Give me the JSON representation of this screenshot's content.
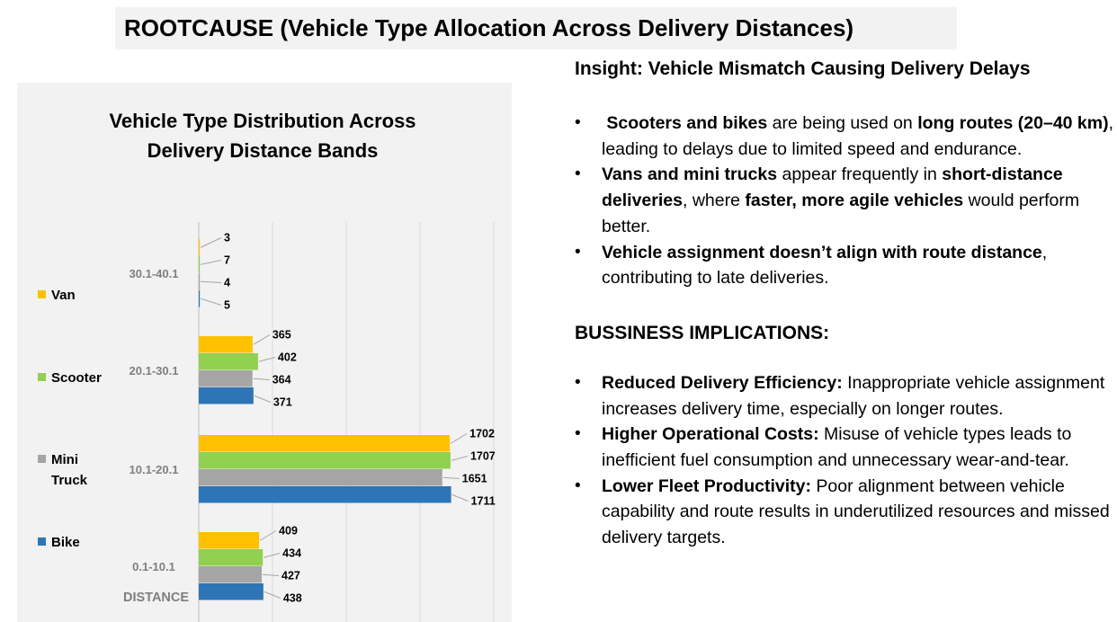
{
  "page_title": "ROOTCAUSE  (Vehicle Type Allocation Across Delivery Distances)",
  "insight": {
    "heading": "Insight: Vehicle Mismatch Causing Delivery Delays",
    "bullets": [
      [
        {
          "t": " Scooters and bikes",
          "b": true
        },
        {
          "t": " are being used on ",
          "b": false
        },
        {
          "t": "long routes (20–40 km)",
          "b": true
        },
        {
          "t": ", leading to delays due to limited speed and endurance.",
          "b": false
        }
      ],
      [
        {
          "t": "Vans and mini trucks",
          "b": true
        },
        {
          "t": " appear frequently in ",
          "b": false
        },
        {
          "t": "short-distance deliveries",
          "b": true
        },
        {
          "t": ", where ",
          "b": false
        },
        {
          "t": "faster, more agile vehicles",
          "b": true
        },
        {
          "t": " would perform better.",
          "b": false
        }
      ],
      [
        {
          "t": "Vehicle assignment doesn’t align with route distance",
          "b": true
        },
        {
          "t": ", contributing to late deliveries.",
          "b": false
        }
      ]
    ]
  },
  "implications": {
    "heading": "BUSSINESS IMPLICATIONS:",
    "bullets": [
      [
        {
          "t": "Reduced Delivery Efficiency:",
          "b": true
        },
        {
          "t": " Inappropriate vehicle assignment increases delivery time, especially on longer routes.",
          "b": false
        }
      ],
      [
        {
          "t": "Higher Operational Costs:",
          "b": true
        },
        {
          "t": " Misuse of vehicle types leads to inefficient fuel consumption and unnecessary wear-and-tear.",
          "b": false
        }
      ],
      [
        {
          "t": "Lower Fleet Productivity:",
          "b": true
        },
        {
          "t": " Poor alignment between vehicle capability and route results in underutilized resources and missed delivery targets.",
          "b": false
        }
      ]
    ]
  },
  "chart_data": {
    "type": "bar",
    "orientation": "horizontal",
    "title": [
      "Vehicle Type Distribution Across",
      "Delivery Distance Bands"
    ],
    "axis_title": "DISTANCE",
    "categories": [
      "0.1-10.1",
      "10.1-20.1",
      "20.1-30.1",
      "30.1-40.1"
    ],
    "series": [
      {
        "name": "Bike",
        "color": "#2e75b6",
        "values": [
          438,
          1711,
          371,
          5
        ]
      },
      {
        "name": "Mini Truck",
        "color": "#a5a5a5",
        "values": [
          427,
          1651,
          364,
          4
        ]
      },
      {
        "name": "Scooter",
        "color": "#92d050",
        "values": [
          434,
          1707,
          402,
          7
        ]
      },
      {
        "name": "Van",
        "color": "#ffc000",
        "values": [
          409,
          1702,
          365,
          3
        ]
      }
    ],
    "legend_order": [
      "Van",
      "Scooter",
      "Mini Truck",
      "Bike"
    ],
    "legend_position": "left",
    "xlim": [
      0,
      2000
    ],
    "gridlines": true,
    "data_labels": true
  }
}
